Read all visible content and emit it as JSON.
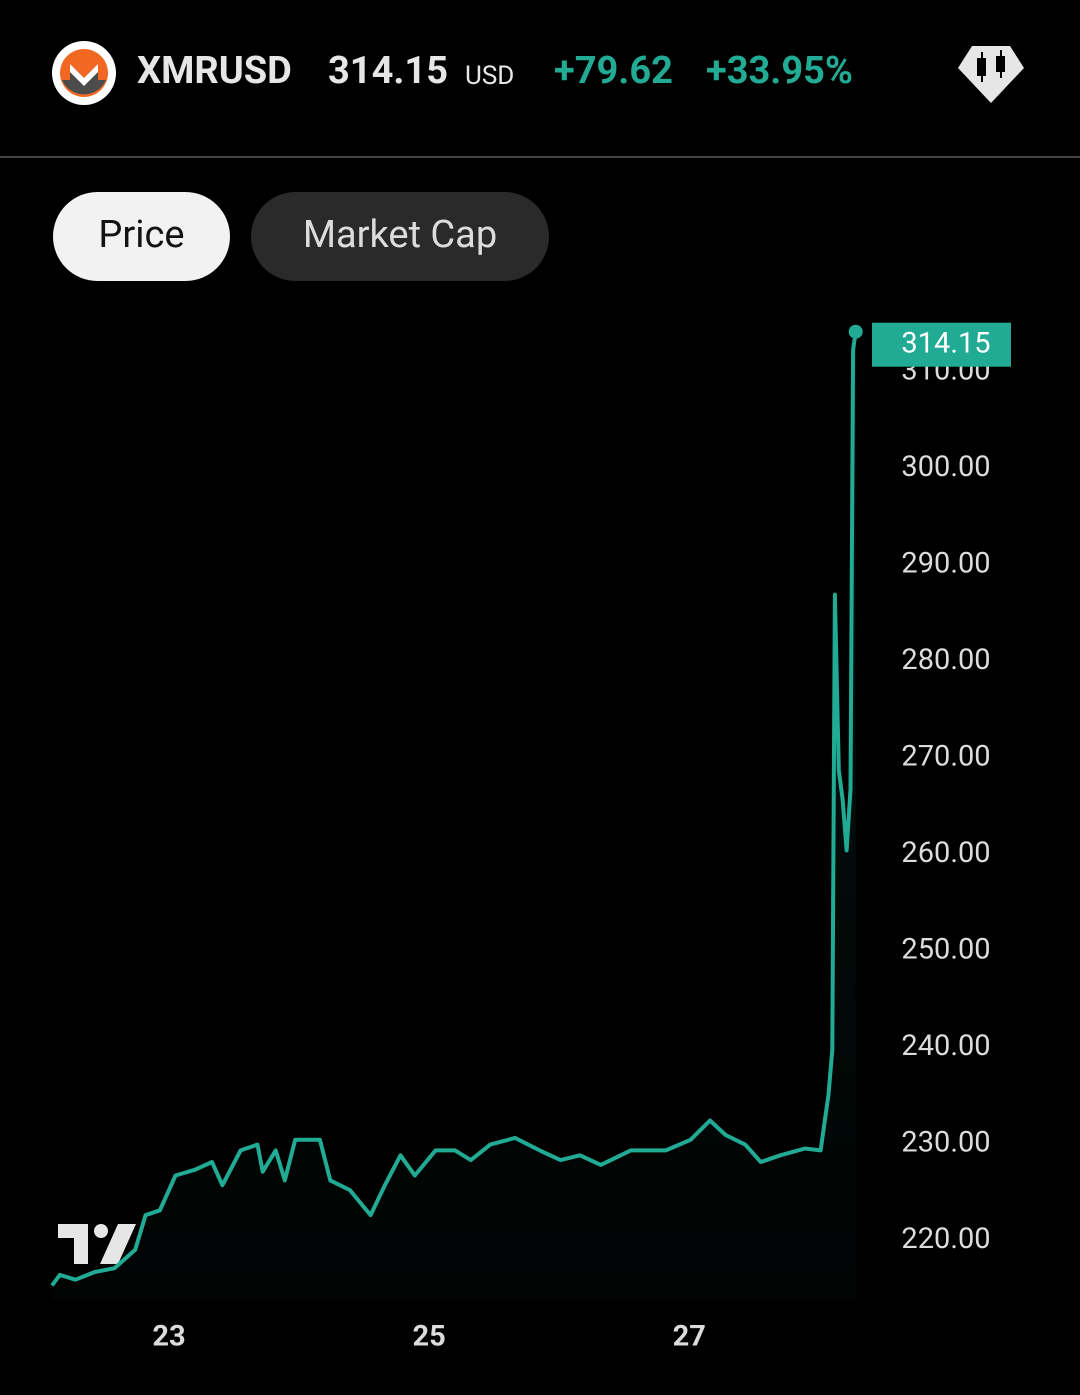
{
  "header": {
    "symbol": "XMRUSD",
    "price": "314.15",
    "currency": "USD",
    "change": "+79.62",
    "change_percent": "+33.95%"
  },
  "tabs": [
    "Price",
    "Market Cap"
  ],
  "chart_data": {
    "type": "line",
    "color": "#22ab94",
    "grid": false,
    "x": [
      22.1,
      22.16,
      22.28,
      22.43,
      22.58,
      22.74,
      22.82,
      22.93,
      23.05,
      23.2,
      23.33,
      23.41,
      23.55,
      23.68,
      23.72,
      23.82,
      23.89,
      23.97,
      24.16,
      24.24,
      24.39,
      24.55,
      24.66,
      24.78,
      24.89,
      25.05,
      25.2,
      25.32,
      25.47,
      25.66,
      25.85,
      26.01,
      26.16,
      26.32,
      26.55,
      26.82,
      27.01,
      27.16,
      27.28,
      27.43,
      27.55,
      27.7,
      27.89,
      28.01,
      28.07,
      28.1,
      28.12,
      28.15,
      28.18,
      28.21,
      28.24,
      28.26,
      28.28
    ],
    "values": [
      215.3,
      216.4,
      215.9,
      216.7,
      217.1,
      219.0,
      222.6,
      223.1,
      226.7,
      227.3,
      228.1,
      225.7,
      229.3,
      229.9,
      227.1,
      229.3,
      226.2,
      230.4,
      230.4,
      226.2,
      225.2,
      222.6,
      225.7,
      228.8,
      226.7,
      229.3,
      229.3,
      228.3,
      229.9,
      230.6,
      229.3,
      228.3,
      228.8,
      227.8,
      229.3,
      229.3,
      230.4,
      232.4,
      230.9,
      229.9,
      228.1,
      228.8,
      229.5,
      229.3,
      235.0,
      239.7,
      286.9,
      268.7,
      265.6,
      260.4,
      266.7,
      312.3,
      314.15
    ],
    "xlim": [
      22.1,
      28.39
    ],
    "xticks": [
      23,
      25,
      27
    ],
    "ylim": [
      213.8,
      316.4
    ],
    "yticks": [
      {
        "value": 220,
        "label": "220.00"
      },
      {
        "value": 230,
        "label": "230.00"
      },
      {
        "value": 240,
        "label": "240.00"
      },
      {
        "value": 250,
        "label": "250.00"
      },
      {
        "value": 260,
        "label": "260.00"
      },
      {
        "value": 270,
        "label": "270.00"
      },
      {
        "value": 280,
        "label": "280.00"
      },
      {
        "value": 290,
        "label": "290.00"
      },
      {
        "value": 300,
        "label": "300.00"
      },
      {
        "value": 310,
        "label": "310.00"
      }
    ]
  }
}
